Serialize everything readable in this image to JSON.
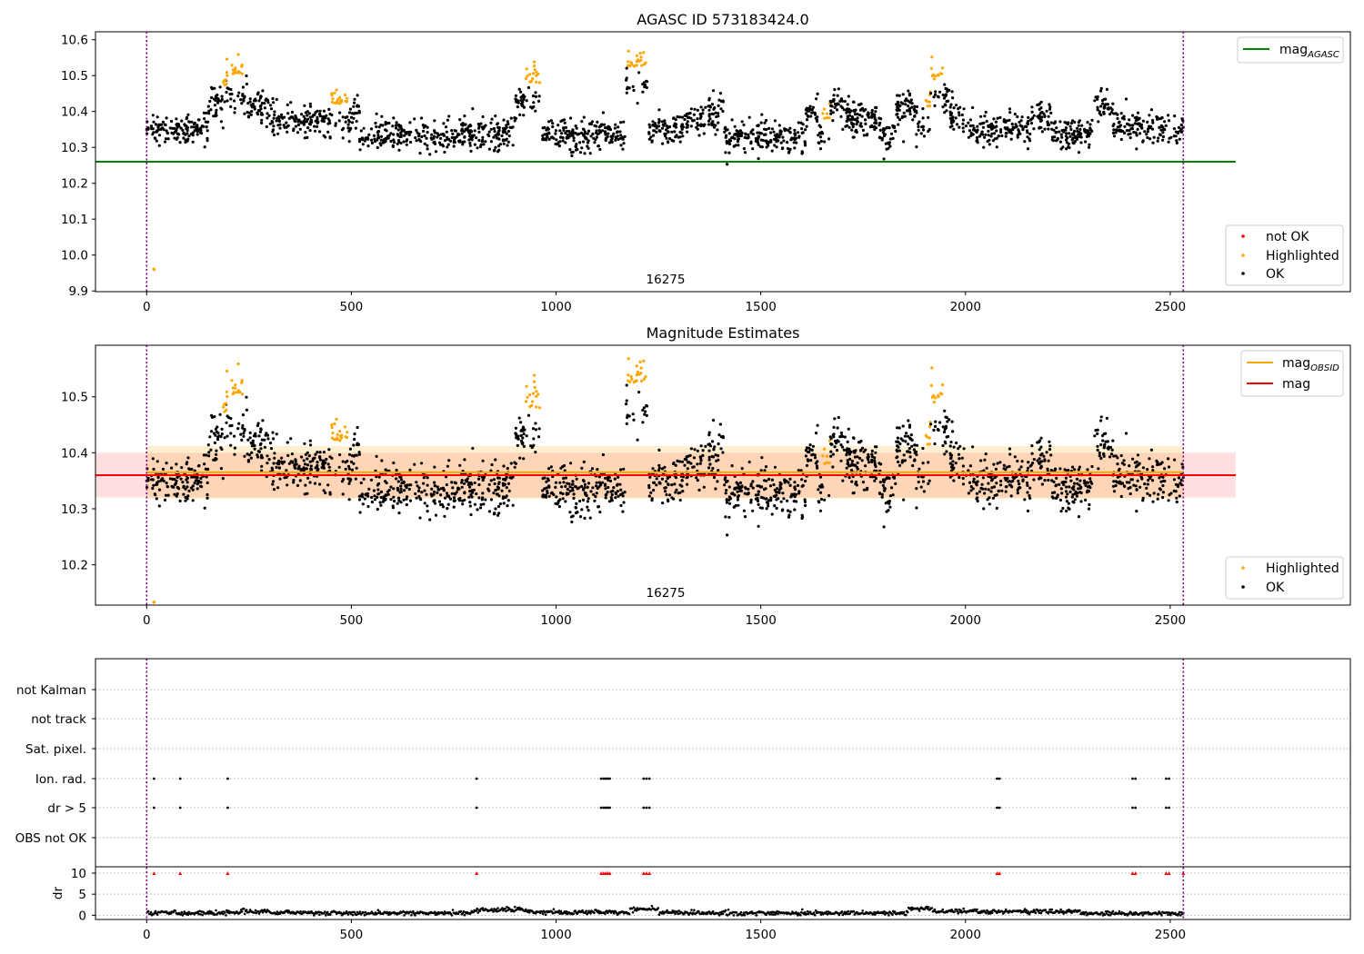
{
  "chart_data": [
    {
      "type": "scatter",
      "title": "AGASC ID 573183424.0",
      "xlim": [
        -125,
        2940
      ],
      "ylim": [
        9.898,
        10.622
      ],
      "xticks": [
        0,
        500,
        1000,
        1500,
        2000,
        2500
      ],
      "yticks": [
        "9.9",
        "10.0",
        "10.1",
        "10.2",
        "10.3",
        "10.4",
        "10.5",
        "10.6"
      ],
      "obsid_label": "16275",
      "obsid_boundaries": [
        0,
        2532
      ],
      "reference_line": {
        "name": "mag_AGASC",
        "y": 10.26,
        "x_range": [
          -125,
          2660
        ],
        "color": "#008000"
      },
      "outlier_points": [
        {
          "x": 18,
          "y": 9.955,
          "series": "Highlighted"
        }
      ],
      "legend_lines": [
        {
          "label": "mag",
          "subscript": "AGASC",
          "color": "#008000"
        }
      ],
      "legend_markers": [
        {
          "label": "not OK",
          "color": "#ff0000"
        },
        {
          "label": "Highlighted",
          "color": "#ffa500"
        },
        {
          "label": "OK",
          "color": "#000000"
        }
      ]
    },
    {
      "type": "scatter",
      "title": "Magnitude Estimates",
      "xlim": [
        -125,
        2940
      ],
      "ylim": [
        10.128,
        10.592
      ],
      "xticks": [
        0,
        500,
        1000,
        1500,
        2000,
        2500
      ],
      "yticks": [
        "10.2",
        "10.3",
        "10.4",
        "10.5"
      ],
      "obsid_label": "16275",
      "obsid_boundaries": [
        0,
        2532
      ],
      "mag_line": {
        "name": "mag",
        "y": 10.36,
        "band": [
          10.32,
          10.4
        ],
        "x_range": [
          -125,
          2660
        ],
        "color": "#ff0000"
      },
      "mag_obsid_line": {
        "name": "mag_OBSID",
        "y": 10.365,
        "band": [
          10.318,
          10.412
        ],
        "x_range": [
          0,
          2532
        ],
        "color": "#ffa500"
      },
      "outlier_points": [
        {
          "x": 18,
          "y": 10.13,
          "series": "Highlighted"
        }
      ],
      "legend_lines": [
        {
          "label": "mag",
          "subscript": "OBSID",
          "color": "#ffa500"
        },
        {
          "label": "mag",
          "subscript": "",
          "color": "#ff0000"
        }
      ],
      "legend_markers": [
        {
          "label": "Highlighted",
          "color": "#ffa500"
        },
        {
          "label": "OK",
          "color": "#000000"
        }
      ]
    },
    {
      "type": "scatter",
      "title": "",
      "xlim": [
        -125,
        2940
      ],
      "xticks": [
        0,
        500,
        1000,
        1500,
        2000,
        2500
      ],
      "obsid_boundaries": [
        0,
        2532
      ],
      "flag_labels": [
        "not Kalman",
        "not track",
        "Sat. pixel.",
        "Ion. rad.",
        "dr > 5",
        "OBS not OK"
      ],
      "flag_points": {
        "Ion. rad.": [
          18,
          82,
          198,
          806,
          1110,
          1116,
          1121,
          1126,
          1131,
          1214,
          1221,
          1228,
          2077,
          2083,
          2408,
          2415,
          2490,
          2497
        ],
        "dr > 5": [
          18,
          82,
          198,
          806,
          1110,
          1116,
          1121,
          1126,
          1131,
          1214,
          1221,
          1228,
          2077,
          2083,
          2408,
          2415,
          2490,
          2497
        ]
      },
      "dr_ylabel": "dr",
      "dr_yticks": [
        "0",
        "5",
        "10"
      ],
      "dr_ylim": [
        -1,
        11.5
      ],
      "dr_clip_points": [
        18,
        82,
        198,
        806,
        1110,
        1116,
        1121,
        1126,
        1131,
        1214,
        1221,
        1228,
        2077,
        2083,
        2408,
        2415,
        2490,
        2497,
        2532
      ]
    }
  ],
  "colors": {
    "ok": "#000000",
    "highlighted": "#ffa500",
    "not_ok": "#ff0000",
    "boundary": "#800080",
    "grid": "#b0b0b0"
  }
}
